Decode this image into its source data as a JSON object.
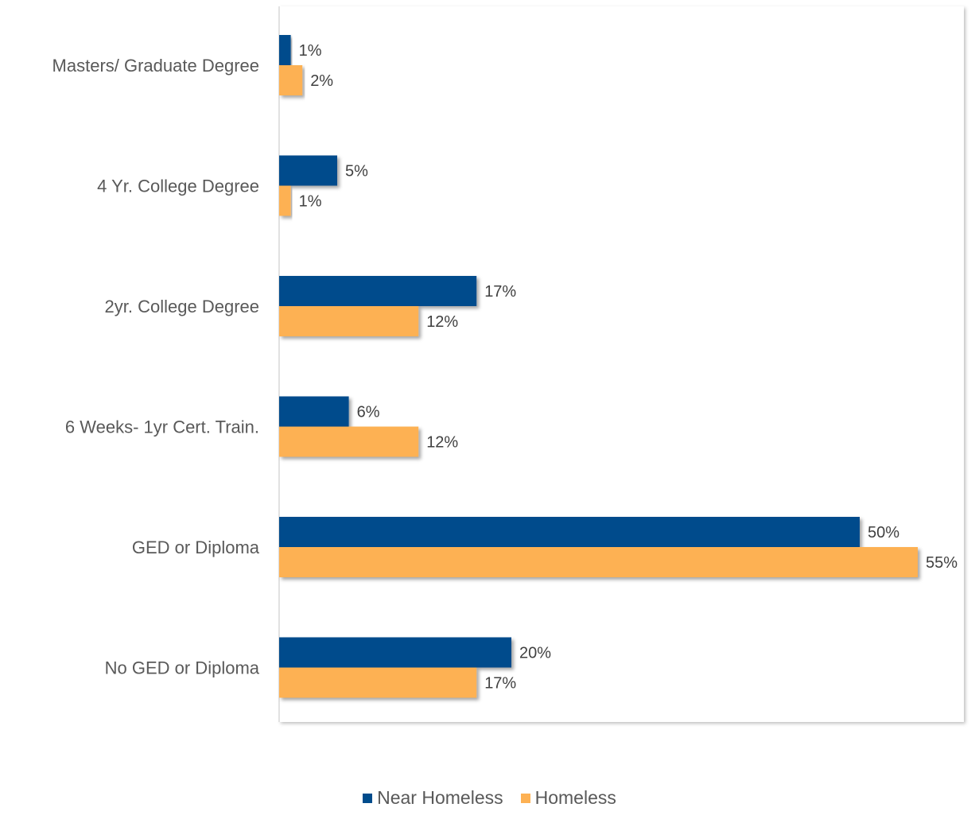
{
  "chart_data": {
    "type": "bar",
    "orientation": "horizontal",
    "categories": [
      "Masters/ Graduate Degree",
      "4 Yr. College Degree",
      "2yr. College Degree",
      "6 Weeks- 1yr Cert. Train.",
      "GED or Diploma",
      "No GED or Diploma"
    ],
    "series": [
      {
        "name": "Near Homeless",
        "color": "#004C8C",
        "values": [
          1,
          5,
          17,
          6,
          50,
          20
        ],
        "labels": [
          "1%",
          "5%",
          "17%",
          "6%",
          "50%",
          "20%"
        ]
      },
      {
        "name": "Homeless",
        "color": "#FDB153",
        "values": [
          2,
          1,
          12,
          12,
          55,
          17
        ],
        "labels": [
          "2%",
          "1%",
          "12%",
          "12%",
          "55%",
          "17%"
        ]
      }
    ],
    "xlim": [
      0,
      60
    ],
    "grid": false,
    "legend_position": "bottom"
  }
}
